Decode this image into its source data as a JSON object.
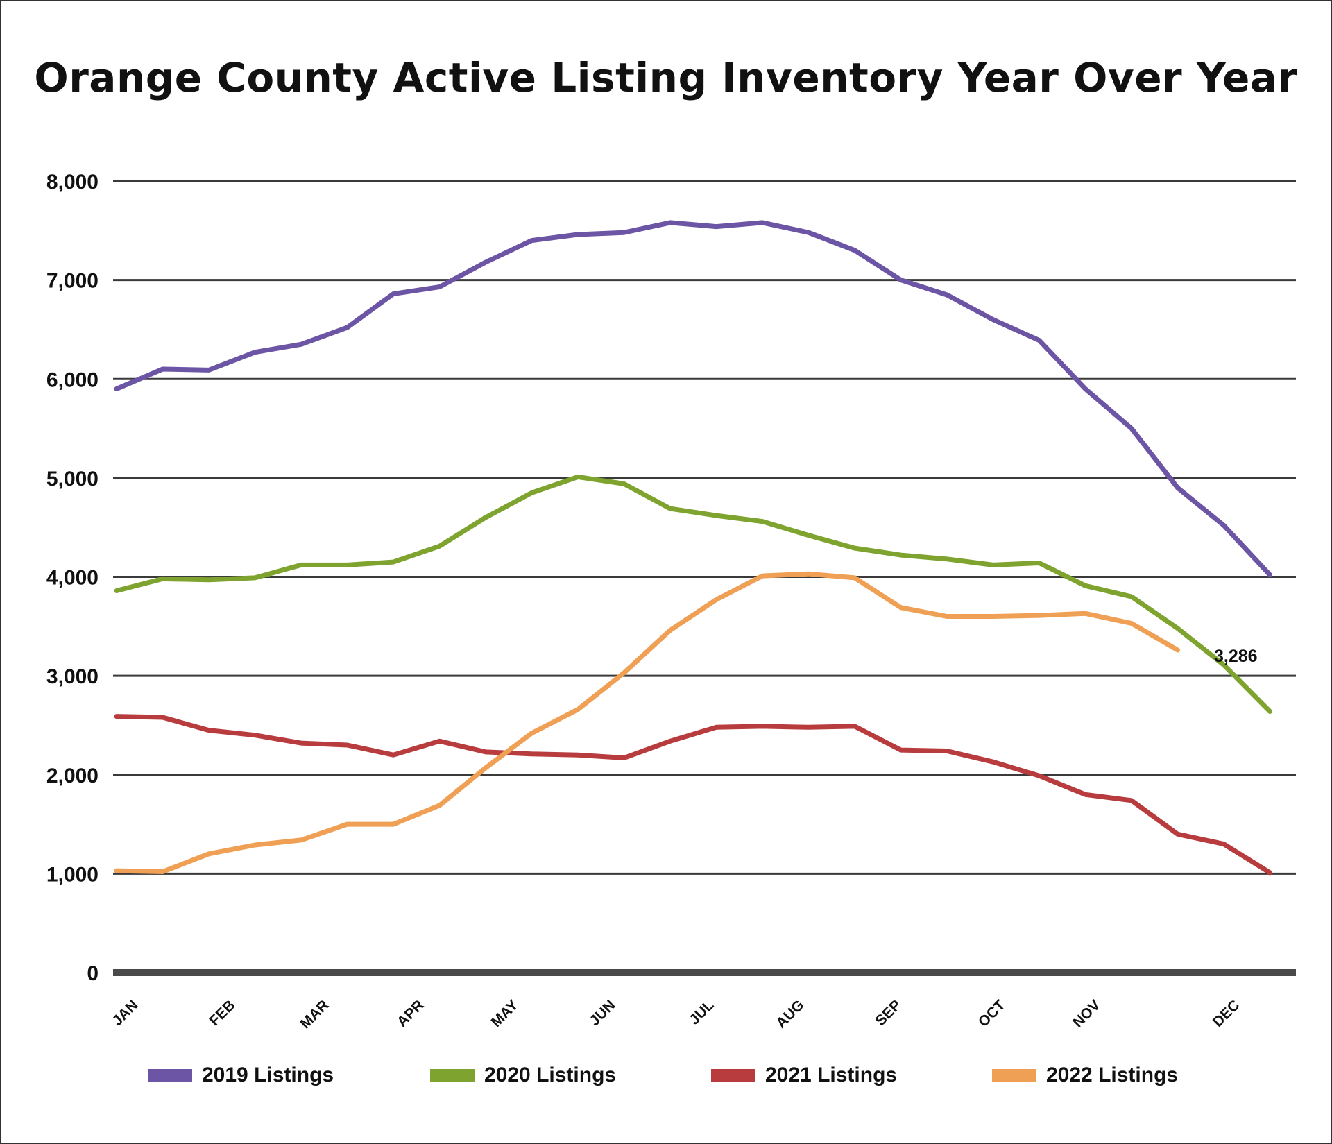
{
  "chart_data": {
    "type": "line",
    "title": "Orange County Active Listing Inventory Year Over Year",
    "xlabel": "",
    "ylabel": "",
    "ylim": [
      0,
      8000
    ],
    "yticks": [
      0,
      1000,
      2000,
      3000,
      4000,
      5000,
      6000,
      7000,
      8000
    ],
    "ytick_labels": [
      "0",
      "1,000",
      "2,000",
      "3,000",
      "4,000",
      "5,000",
      "6,000",
      "7,000",
      "8,000"
    ],
    "months": [
      "JAN",
      "FEB",
      "MAR",
      "APR",
      "MAY",
      "JUN",
      "JUL",
      "AUG",
      "SEP",
      "OCT",
      "NOV",
      "DEC"
    ],
    "x_unit": "week",
    "grid": true,
    "legend_position": "bottom",
    "series": [
      {
        "name": "2019 Listings",
        "color": "#6b55a4",
        "values": [
          5900,
          6100,
          6090,
          6270,
          6350,
          6520,
          6860,
          6930,
          7180,
          7400,
          7460,
          7480,
          7580,
          7540,
          7580,
          7480,
          7300,
          7000,
          6850,
          6600,
          6390,
          5900,
          5500,
          4900,
          4520,
          4020
        ]
      },
      {
        "name": "2020 Listings",
        "color": "#7ea32f",
        "values": [
          3860,
          3980,
          3970,
          3990,
          4120,
          4120,
          4150,
          4310,
          4600,
          4850,
          5010,
          4940,
          4690,
          4620,
          4560,
          4420,
          4290,
          4220,
          4180,
          4120,
          4140,
          3910,
          3800,
          3480,
          3110,
          2640
        ]
      },
      {
        "name": "2021 Listings",
        "color": "#b83c3e",
        "values": [
          2590,
          2580,
          2450,
          2400,
          2320,
          2300,
          2200,
          2340,
          2230,
          2210,
          2200,
          2170,
          2340,
          2480,
          2490,
          2480,
          2490,
          2250,
          2240,
          2130,
          1990,
          1800,
          1740,
          1400,
          1300,
          1010
        ]
      },
      {
        "name": "2022 Listings",
        "color": "#f0a055",
        "values": [
          1030,
          1020,
          1200,
          1290,
          1340,
          1500,
          1500,
          1690,
          2070,
          2420,
          2660,
          3030,
          3460,
          3770,
          4010,
          4030,
          3990,
          3690,
          3600,
          3600,
          3610,
          3630,
          3530,
          3260
        ]
      }
    ],
    "annotations": [
      {
        "text": "3,286"
      }
    ]
  }
}
